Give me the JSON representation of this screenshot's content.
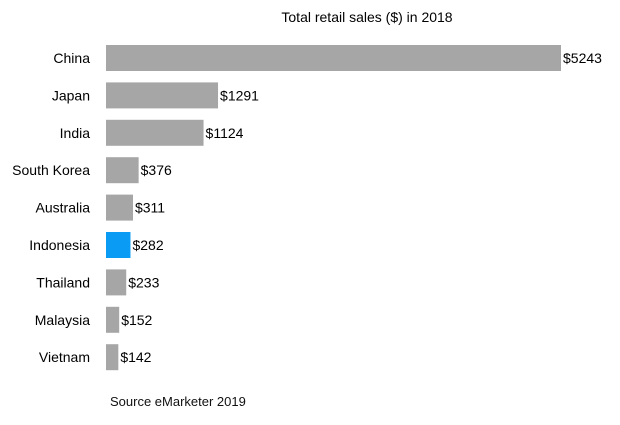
{
  "chart_data": {
    "type": "bar",
    "orientation": "horizontal",
    "title": "Total retail sales ($) in 2018",
    "categories": [
      "China",
      "Japan",
      "India",
      "South Korea",
      "Australia",
      "Indonesia",
      "Thailand",
      "Malaysia",
      "Vietnam"
    ],
    "values": [
      5243,
      1291,
      1124,
      376,
      311,
      282,
      233,
      152,
      142
    ],
    "data_labels": [
      "$5243",
      "$1291",
      "$1124",
      "$376",
      "$311",
      "$282",
      "$233",
      "$152",
      "$142"
    ],
    "highlight_category": "Indonesia",
    "colors": {
      "default": "#a6a6a6",
      "highlight": "#0a9cf5"
    },
    "grid": false,
    "xlim": [
      0,
      5243
    ]
  },
  "source": "Source eMarketer 2019"
}
